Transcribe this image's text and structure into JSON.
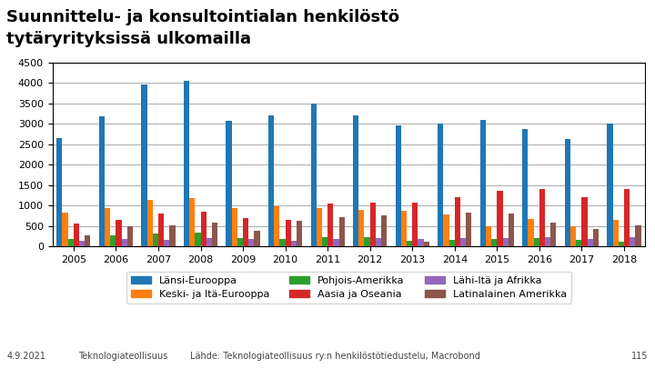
{
  "chart_data": {
    "type": "bar",
    "title": "Suunnittelu- ja konsultointialan henkilöstö",
    "subtitle": "tytäryrityksissä ulkomailla",
    "categories": [
      "2005",
      "2006",
      "2007",
      "2008",
      "2009",
      "2010",
      "2011",
      "2012",
      "2013",
      "2014",
      "2015",
      "2016",
      "2017",
      "2018"
    ],
    "series": [
      {
        "name": "Länsi-Eurooppa",
        "values": [
          2650,
          3180,
          3970,
          4050,
          3080,
          3200,
          3500,
          3200,
          2970,
          3010,
          3090,
          2880,
          2640,
          3000
        ]
      },
      {
        "name": "Keski- ja Itä-Eurooppa",
        "values": [
          820,
          950,
          1150,
          1180,
          950,
          980,
          950,
          900,
          880,
          780,
          490,
          670,
          500,
          650
        ]
      },
      {
        "name": "Pohjois-Amerikka",
        "values": [
          190,
          270,
          330,
          340,
          210,
          190,
          240,
          220,
          140,
          170,
          190,
          200,
          160,
          120
        ]
      },
      {
        "name": "Aasia ja Oseania",
        "values": [
          560,
          660,
          800,
          860,
          700,
          660,
          1060,
          1070,
          1070,
          1200,
          1360,
          1400,
          1200,
          1400
        ]
      },
      {
        "name": "Lähi-Itä ja Afrikka",
        "values": [
          140,
          190,
          170,
          200,
          180,
          140,
          180,
          210,
          190,
          200,
          200,
          220,
          190,
          240
        ]
      },
      {
        "name": "Latinalainen Amerikka",
        "values": [
          270,
          490,
          530,
          590,
          390,
          620,
          730,
          770,
          130,
          820,
          800,
          580,
          430,
          510
        ]
      }
    ],
    "ylim": [
      0,
      4500
    ],
    "yticks": [
      0,
      500,
      1000,
      1500,
      2000,
      2500,
      3000,
      3500,
      4000,
      4500
    ],
    "grid": true,
    "legend": "upper center",
    "annotations": [
      "4.9.2021",
      "Teknologiateollisuus",
      "Lähde: Teknologiateollisuus ry:n henkilöstötiedustelu, Macrobond",
      "115"
    ]
  }
}
